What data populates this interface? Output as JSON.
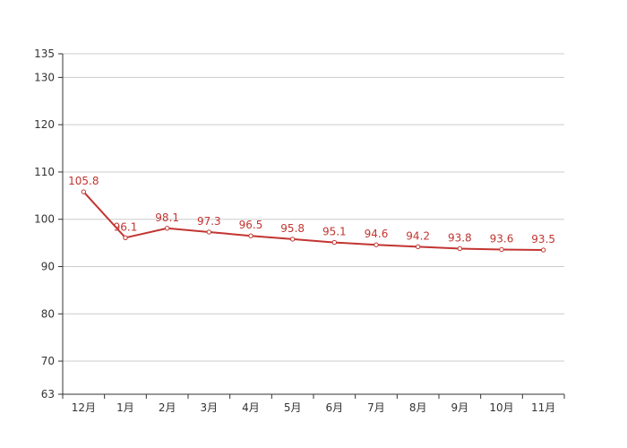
{
  "chart_data": {
    "type": "line",
    "title": "",
    "xlabel": "",
    "ylabel": "",
    "categories": [
      "12月",
      "1月",
      "2月",
      "3月",
      "4月",
      "5月",
      "6月",
      "7月",
      "8月",
      "9月",
      "10月",
      "11月"
    ],
    "series": [
      {
        "values": [
          105.8,
          96.1,
          98.1,
          97.3,
          96.5,
          95.8,
          95.1,
          94.6,
          94.2,
          93.8,
          93.6,
          93.5
        ],
        "color": "#c23531"
      }
    ],
    "ylim": [
      63,
      135
    ],
    "yticks": [
      63,
      70,
      80,
      90,
      100,
      110,
      120,
      130,
      135
    ],
    "grid": true,
    "legend": "none",
    "data_labels": true
  }
}
